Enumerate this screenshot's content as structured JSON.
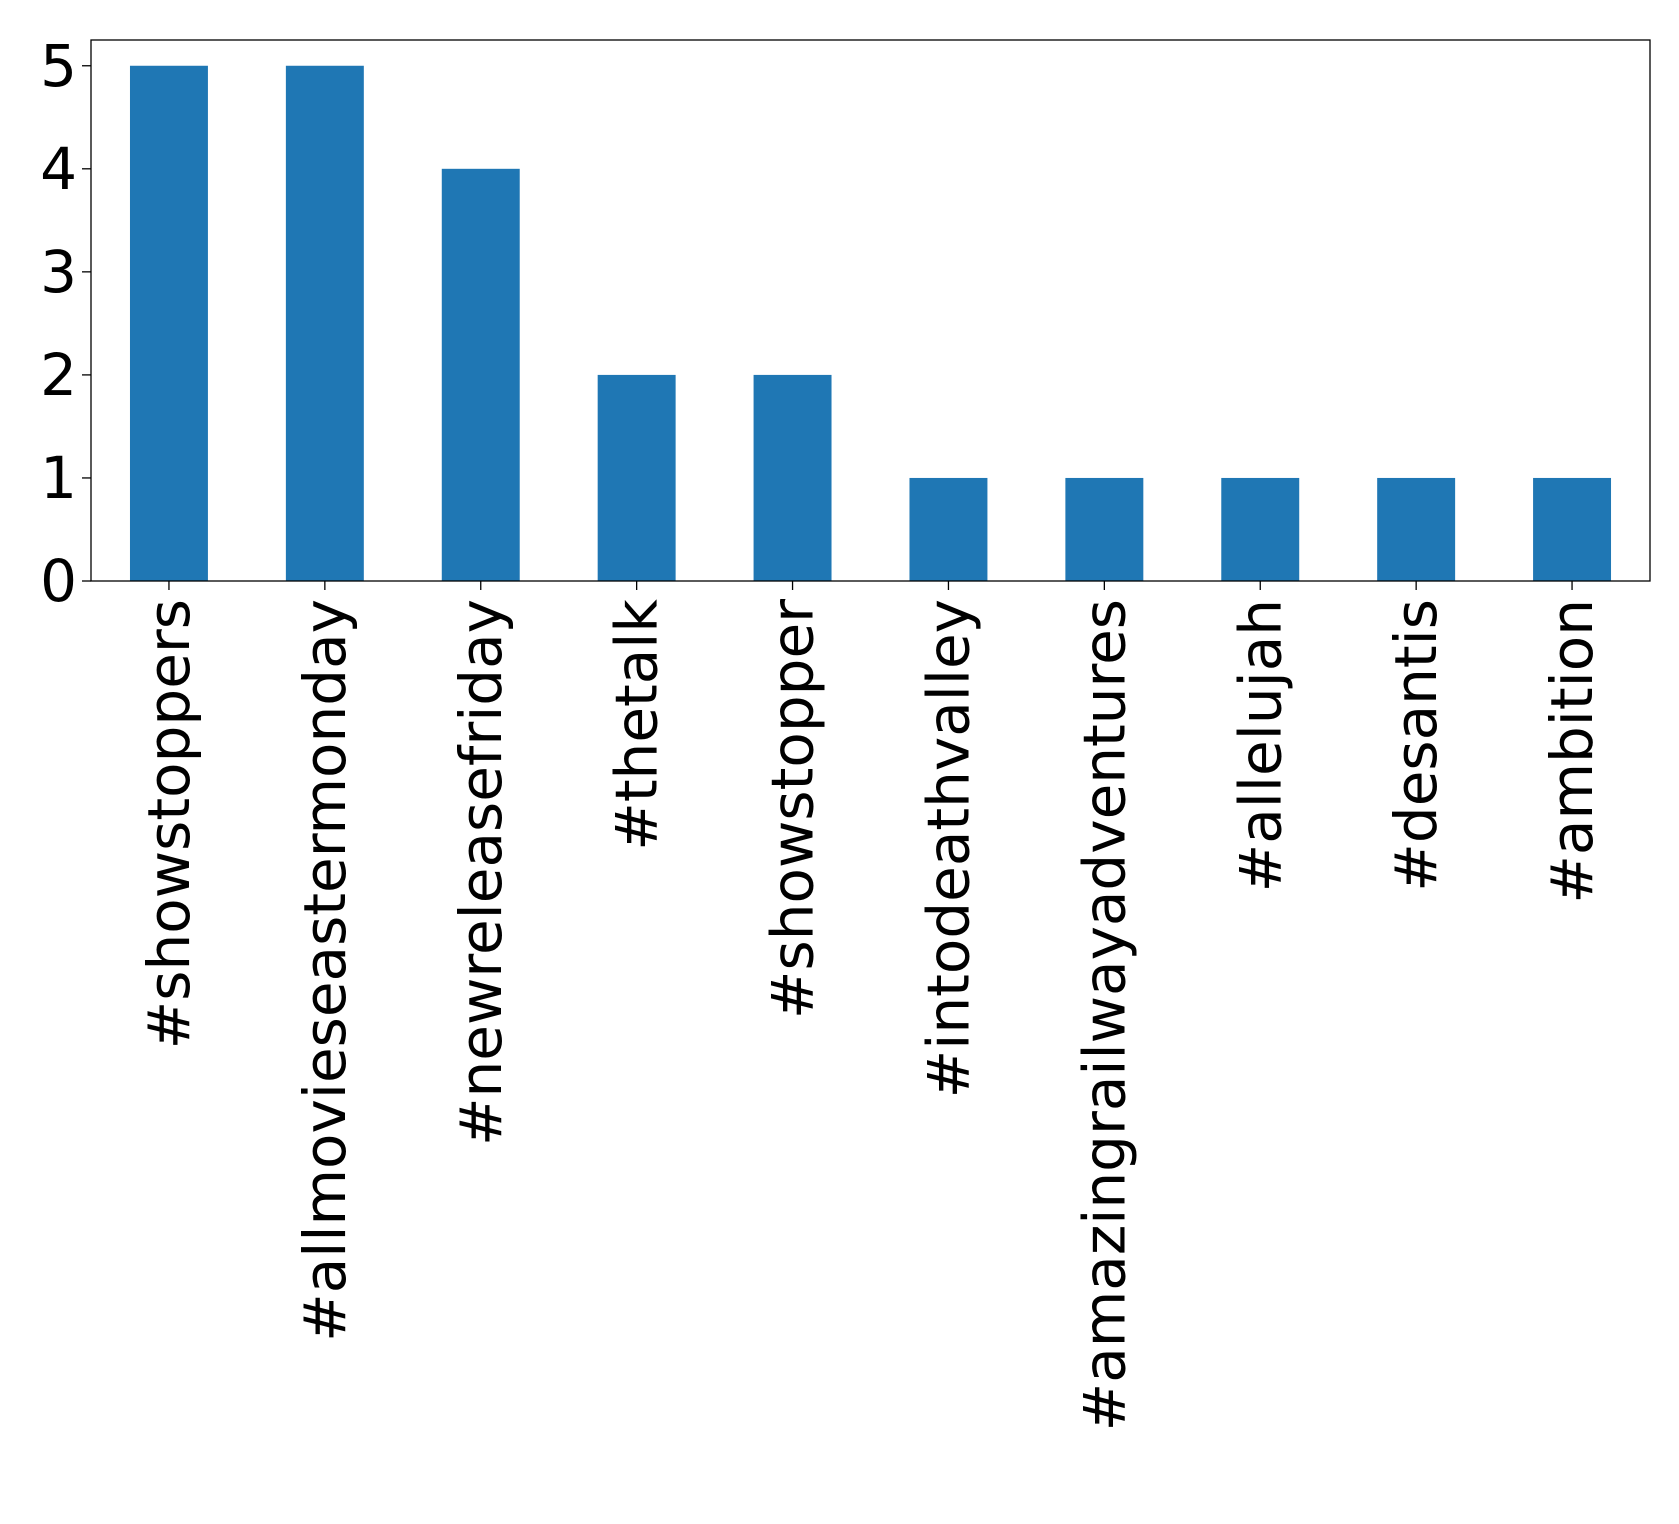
{
  "chart_data": {
    "type": "bar",
    "title": "",
    "xlabel": "",
    "ylabel": "",
    "categories": [
      "#showstoppers",
      "#allmovieseastermonday",
      "#newreleasefriday",
      "#thetalk",
      "#showstopper",
      "#intodeathvalley",
      "#amazingrailwayadventures",
      "#allelujah",
      "#desantis",
      "#ambition"
    ],
    "values": [
      5,
      5,
      4,
      2,
      2,
      1,
      1,
      1,
      1,
      1
    ],
    "ylim": [
      0,
      5.25
    ],
    "yticks": [
      "0",
      "1",
      "2",
      "3",
      "4",
      "5"
    ],
    "bar_color": "#1f77b4",
    "grid": false,
    "legend": "none"
  }
}
